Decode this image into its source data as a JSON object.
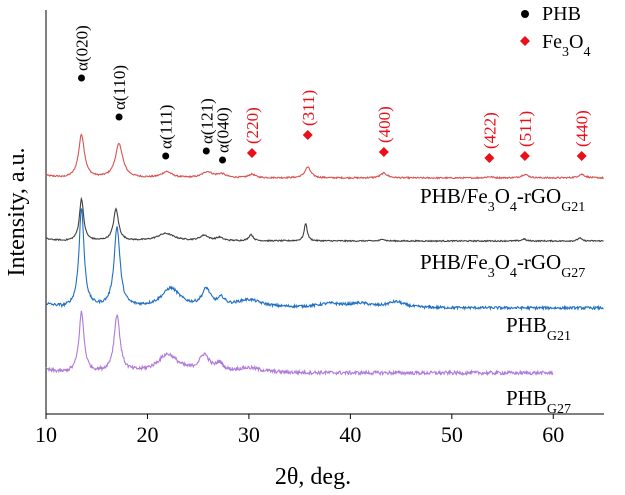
{
  "chart_data": {
    "type": "line",
    "title": "",
    "xlabel": "2θ, deg.",
    "ylabel": "Intensity, a.u.",
    "xlim": [
      10,
      65
    ],
    "x_ticks": [
      "10",
      "20",
      "30",
      "40",
      "50",
      "60"
    ],
    "legend": [
      {
        "label": "PHB",
        "marker": "circle",
        "color": "#000000"
      },
      {
        "label_main": "Fe",
        "label_sub": "3",
        "label_main2": "O",
        "label_sub2": "4",
        "marker": "diamond",
        "color": "#e8101a"
      }
    ],
    "series": [
      {
        "name_main": "PHB/Fe",
        "name_sub": "3",
        "name_main2": "O",
        "name_sub2": "4",
        "name_main3": "-rGO",
        "name_sub3": "G21",
        "color": "#d9534f",
        "x_range": [
          10,
          65
        ],
        "baseline": 0.0,
        "noise": 0.006,
        "peaks": [
          {
            "pos": 13.5,
            "h": 0.36,
            "w": 0.35
          },
          {
            "pos": 17.2,
            "h": 0.28,
            "w": 0.45
          },
          {
            "pos": 21.9,
            "h": 0.05,
            "w": 0.6
          },
          {
            "pos": 25.9,
            "h": 0.05,
            "w": 0.6
          },
          {
            "pos": 27.3,
            "h": 0.03,
            "w": 0.5
          },
          {
            "pos": 30.3,
            "h": 0.03,
            "w": 0.4
          },
          {
            "pos": 35.8,
            "h": 0.09,
            "w": 0.35
          },
          {
            "pos": 43.3,
            "h": 0.04,
            "w": 0.4
          },
          {
            "pos": 53.7,
            "h": 0.01,
            "w": 0.4
          },
          {
            "pos": 57.2,
            "h": 0.03,
            "w": 0.4
          },
          {
            "pos": 62.8,
            "h": 0.03,
            "w": 0.4
          }
        ]
      },
      {
        "name_main": "PHB/Fe",
        "name_sub": "3",
        "name_main2": "O",
        "name_sub2": "4",
        "name_main3": "-rGO",
        "name_sub3": "G27",
        "color": "#404040",
        "x_range": [
          10,
          65
        ],
        "baseline": 0.0,
        "noise": 0.006,
        "peaks": [
          {
            "pos": 13.5,
            "h": 0.4,
            "w": 0.25
          },
          {
            "pos": 16.9,
            "h": 0.3,
            "w": 0.3
          },
          {
            "pos": 21.8,
            "h": 0.07,
            "w": 1.0
          },
          {
            "pos": 25.6,
            "h": 0.05,
            "w": 0.5
          },
          {
            "pos": 27.1,
            "h": 0.03,
            "w": 0.4
          },
          {
            "pos": 30.2,
            "h": 0.06,
            "w": 0.25
          },
          {
            "pos": 35.6,
            "h": 0.17,
            "w": 0.18
          },
          {
            "pos": 43.2,
            "h": 0.02,
            "w": 0.2
          },
          {
            "pos": 57.1,
            "h": 0.02,
            "w": 0.2
          },
          {
            "pos": 62.6,
            "h": 0.03,
            "w": 0.2
          }
        ]
      },
      {
        "name_main": "PHB",
        "name_sub": "G21",
        "color": "#1f6fc4",
        "x_range": [
          10,
          65
        ],
        "baseline": 0.0,
        "noise": 0.007,
        "peaks": [
          {
            "pos": 13.5,
            "h": 0.52,
            "w": 0.3
          },
          {
            "pos": 17.0,
            "h": 0.42,
            "w": 0.35
          },
          {
            "pos": 22.3,
            "h": 0.1,
            "w": 1.1
          },
          {
            "pos": 25.8,
            "h": 0.09,
            "w": 0.5
          },
          {
            "pos": 27.3,
            "h": 0.04,
            "w": 0.4
          },
          {
            "pos": 30.0,
            "h": 0.04,
            "w": 1.5
          },
          {
            "pos": 38.0,
            "h": 0.02,
            "w": 1.5
          },
          {
            "pos": 41.0,
            "h": 0.02,
            "w": 1.2
          },
          {
            "pos": 44.5,
            "h": 0.03,
            "w": 1.0
          }
        ]
      },
      {
        "name_main": "PHB",
        "name_sub": "G27",
        "color": "#b07ad8",
        "x_range": [
          10,
          60
        ],
        "baseline": 0.0,
        "noise": 0.012,
        "peaks": [
          {
            "pos": 13.5,
            "h": 0.4,
            "w": 0.3
          },
          {
            "pos": 17.0,
            "h": 0.38,
            "w": 0.35
          },
          {
            "pos": 22.0,
            "h": 0.12,
            "w": 1.2
          },
          {
            "pos": 25.6,
            "h": 0.11,
            "w": 0.6
          },
          {
            "pos": 27.1,
            "h": 0.05,
            "w": 0.4
          },
          {
            "pos": 30.0,
            "h": 0.03,
            "w": 1.5
          }
        ]
      }
    ],
    "annotations_phb": [
      {
        "x": 13.5,
        "label": "α(020)"
      },
      {
        "x": 17.2,
        "label": "α(110)"
      },
      {
        "x": 21.8,
        "label": "α(111)"
      },
      {
        "x": 25.8,
        "label": "α(121)"
      },
      {
        "x": 27.4,
        "label": "α(040)"
      }
    ],
    "annotations_fe3o4": [
      {
        "x": 30.3,
        "label": "(220)"
      },
      {
        "x": 35.8,
        "label": "(311)"
      },
      {
        "x": 43.3,
        "label": "(400)"
      },
      {
        "x": 53.7,
        "label": "(422)"
      },
      {
        "x": 57.2,
        "label": "(511)"
      },
      {
        "x": 62.8,
        "label": "(440)"
      }
    ]
  }
}
